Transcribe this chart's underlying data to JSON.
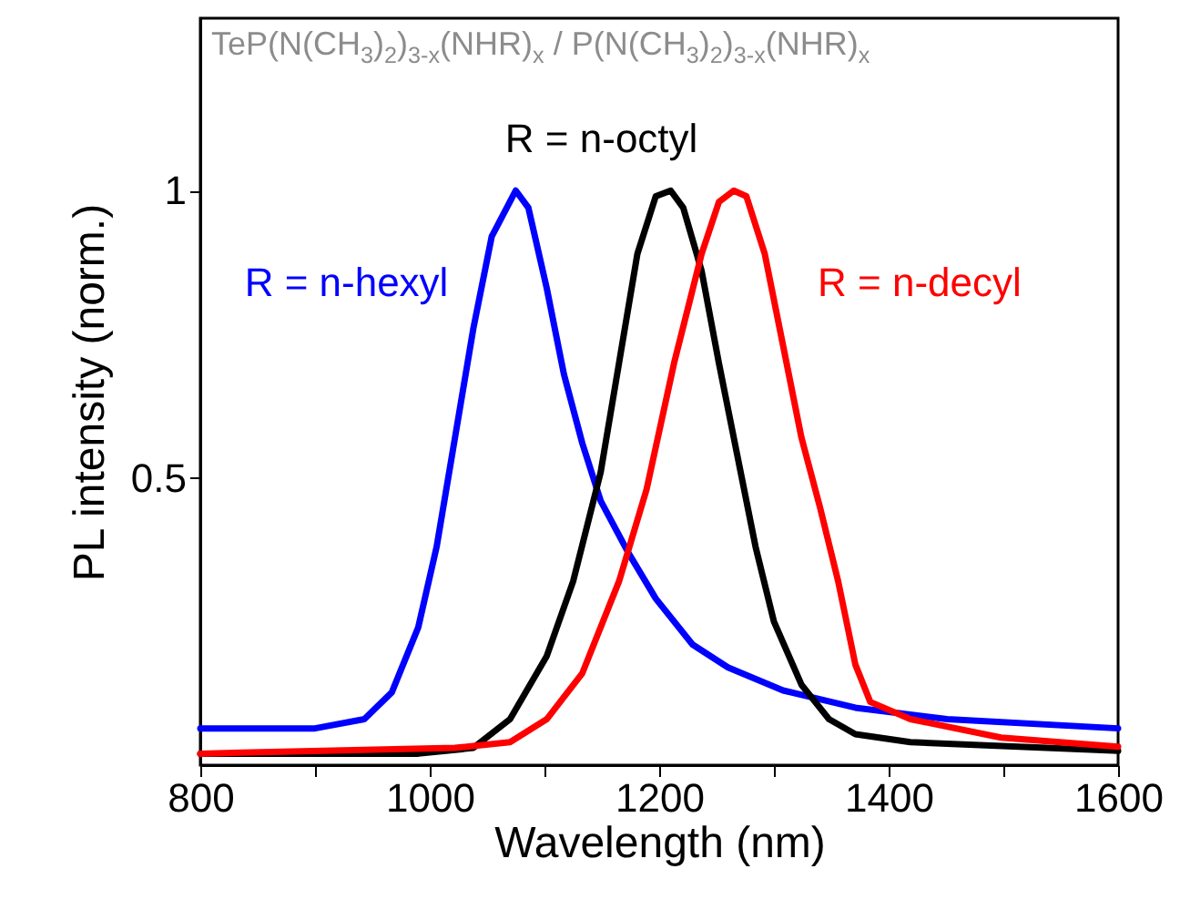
{
  "chart_data": {
    "type": "line",
    "title": "TeP(N(CH$_{3}$)$_{2}$)$_{3-x}$(NHR)$_{x}$ / P(N(CH$_{3}$)$_{2}$)$_{3-x}$(NHR)$_{x}$",
    "xlabel": "Wavelength (nm)",
    "ylabel": "PL intensity (norm.)",
    "xlim": [
      800,
      1600
    ],
    "ylim": [
      0,
      1.3
    ],
    "xticks": [
      800,
      {
        "value": 900,
        "label": null
      },
      1000,
      {
        "value": 1100,
        "label": null
      },
      1200,
      {
        "value": 1300,
        "label": null
      },
      1400,
      {
        "value": 1500,
        "label": null
      },
      1600
    ],
    "yticks": [
      0.5,
      1
    ],
    "grid": false,
    "marker": "none",
    "line_style": "solid",
    "series": [
      {
        "name": "R = n-hexyl",
        "color": "#0000ff",
        "x": [
          800,
          900,
          943,
          967,
          990,
          1006,
          1022,
          1038,
          1054,
          1075,
          1086,
          1102,
          1117,
          1133,
          1149,
          1173,
          1197,
          1229,
          1260,
          1308,
          1371,
          1451,
          1600
        ],
        "values": [
          0.064,
          0.064,
          0.08,
          0.127,
          0.24,
          0.38,
          0.57,
          0.76,
          0.92,
          1.0,
          0.97,
          0.83,
          0.68,
          0.56,
          0.46,
          0.37,
          0.29,
          0.21,
          0.17,
          0.13,
          0.1,
          0.08,
          0.064
        ]
      },
      {
        "name": "R = n-octyl",
        "color": "#000000",
        "x": [
          800,
          990,
          1038,
          1070,
          1102,
          1125,
          1149,
          1165,
          1181,
          1197,
          1210,
          1221,
          1237,
          1252,
          1268,
          1284,
          1300,
          1324,
          1348,
          1371,
          1419,
          1600
        ],
        "values": [
          0.02,
          0.02,
          0.03,
          0.08,
          0.19,
          0.32,
          0.51,
          0.7,
          0.89,
          0.99,
          1.0,
          0.97,
          0.86,
          0.7,
          0.54,
          0.38,
          0.25,
          0.14,
          0.08,
          0.054,
          0.04,
          0.025
        ]
      },
      {
        "name": "R = n-decyl",
        "color": "#ff0000",
        "x": [
          800,
          1022,
          1070,
          1102,
          1133,
          1165,
          1189,
          1213,
          1237,
          1252,
          1265,
          1276,
          1292,
          1308,
          1324,
          1340,
          1356,
          1371,
          1384,
          1419,
          1498,
          1600
        ],
        "values": [
          0.02,
          0.03,
          0.04,
          0.08,
          0.16,
          0.32,
          0.48,
          0.7,
          0.89,
          0.98,
          1.0,
          0.99,
          0.89,
          0.73,
          0.57,
          0.45,
          0.32,
          0.175,
          0.11,
          0.08,
          0.048,
          0.032
        ]
      }
    ]
  }
}
